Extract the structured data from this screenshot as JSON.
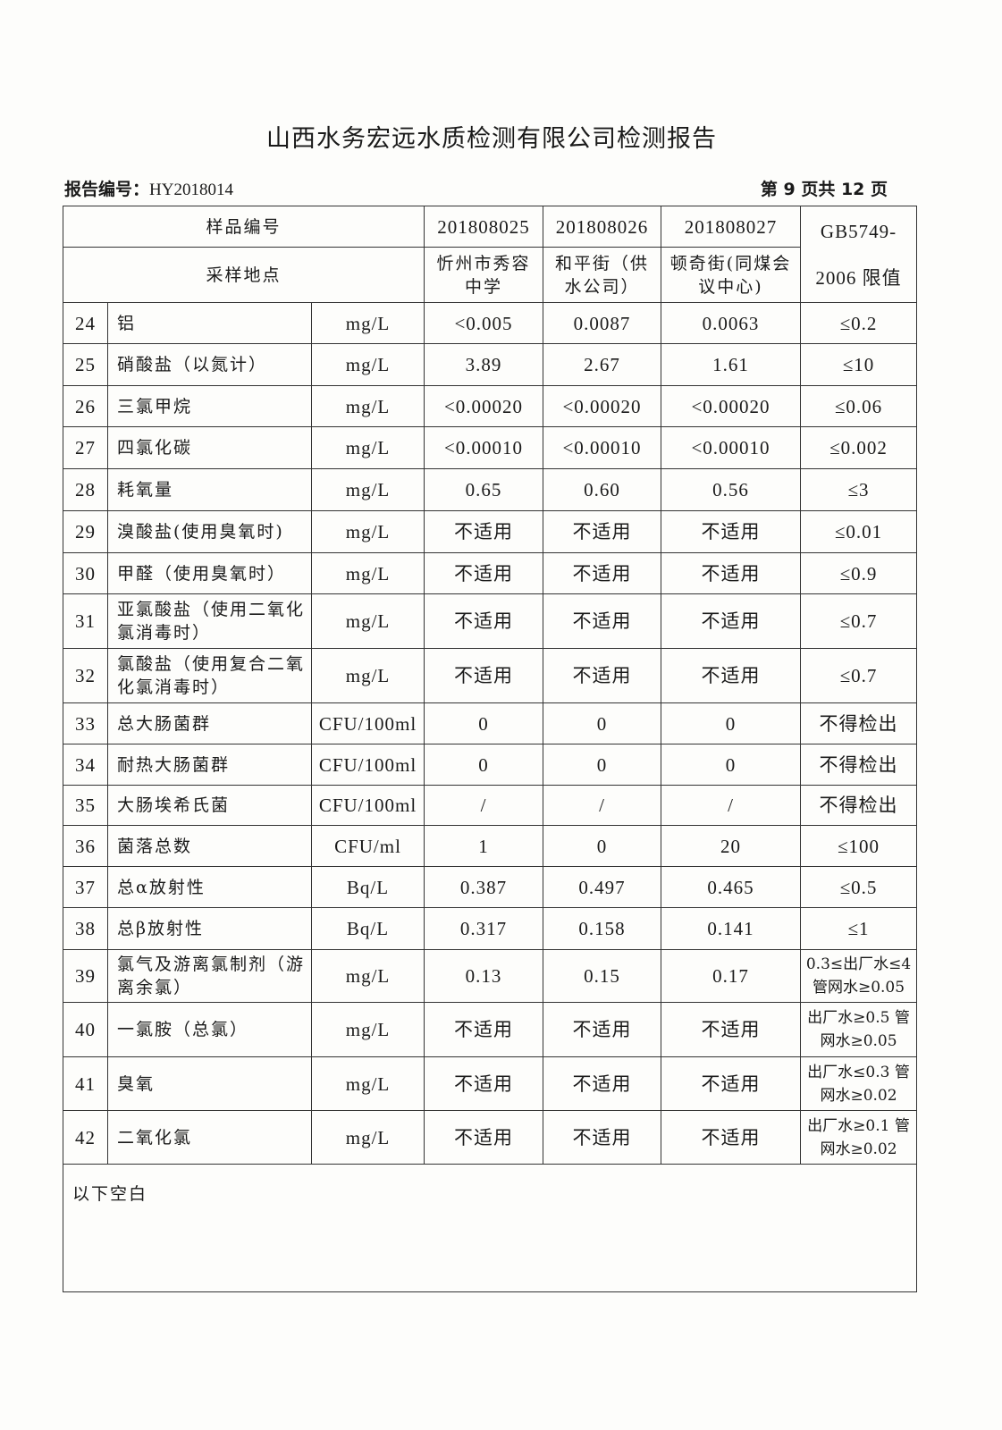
{
  "title": "山西水务宏远水质检测有限公司检测报告",
  "report_no_label": "报告编号：",
  "report_no": "HY2018014",
  "page_info": "第 9 页共 12 页",
  "header": {
    "sample_no_label": "样品编号",
    "location_label": "采样地点",
    "samples": [
      "201808025",
      "201808026",
      "201808027"
    ],
    "locations": [
      "忻州市秀容中学",
      "和平街（供水公司）",
      "顿奇街(同煤会议中心)"
    ],
    "limit_label": "GB5749-2006 限值"
  },
  "rows": [
    {
      "no": "24",
      "name": "铝",
      "unit": "mg/L",
      "v": [
        "<0.005",
        "0.0087",
        "0.0063"
      ],
      "limit": "≤0.2"
    },
    {
      "no": "25",
      "name": "硝酸盐（以氮计）",
      "unit": "mg/L",
      "v": [
        "3.89",
        "2.67",
        "1.61"
      ],
      "limit": "≤10"
    },
    {
      "no": "26",
      "name": "三氯甲烷",
      "unit": "mg/L",
      "v": [
        "<0.00020",
        "<0.00020",
        "<0.00020"
      ],
      "limit": "≤0.06"
    },
    {
      "no": "27",
      "name": "四氯化碳",
      "unit": "mg/L",
      "v": [
        "<0.00010",
        "<0.00010",
        "<0.00010"
      ],
      "limit": "≤0.002"
    },
    {
      "no": "28",
      "name": "耗氧量",
      "unit": "mg/L",
      "v": [
        "0.65",
        "0.60",
        "0.56"
      ],
      "limit": "≤3"
    },
    {
      "no": "29",
      "name": "溴酸盐(使用臭氧时)",
      "unit": "mg/L",
      "v": [
        "不适用",
        "不适用",
        "不适用"
      ],
      "limit": "≤0.01"
    },
    {
      "no": "30",
      "name": "甲醛（使用臭氧时）",
      "unit": "mg/L",
      "v": [
        "不适用",
        "不适用",
        "不适用"
      ],
      "limit": "≤0.9"
    },
    {
      "no": "31",
      "name": "亚氯酸盐（使用二氧化氯消毒时）",
      "unit": "mg/L",
      "v": [
        "不适用",
        "不适用",
        "不适用"
      ],
      "limit": "≤0.7"
    },
    {
      "no": "32",
      "name": "氯酸盐（使用复合二氧化氯消毒时）",
      "unit": "mg/L",
      "v": [
        "不适用",
        "不适用",
        "不适用"
      ],
      "limit": "≤0.7"
    },
    {
      "no": "33",
      "name": "总大肠菌群",
      "unit": "CFU/100ml",
      "v": [
        "0",
        "0",
        "0"
      ],
      "limit": "不得检出"
    },
    {
      "no": "34",
      "name": "耐热大肠菌群",
      "unit": "CFU/100ml",
      "v": [
        "0",
        "0",
        "0"
      ],
      "limit": "不得检出"
    },
    {
      "no": "35",
      "name": "大肠埃希氏菌",
      "unit": "CFU/100ml",
      "v": [
        "/",
        "/",
        "/"
      ],
      "limit": "不得检出"
    },
    {
      "no": "36",
      "name": "菌落总数",
      "unit": "CFU/ml",
      "v": [
        "1",
        "0",
        "20"
      ],
      "limit": "≤100"
    },
    {
      "no": "37",
      "name": "总α放射性",
      "unit": "Bq/L",
      "v": [
        "0.387",
        "0.497",
        "0.465"
      ],
      "limit": "≤0.5"
    },
    {
      "no": "38",
      "name": "总β放射性",
      "unit": "Bq/L",
      "v": [
        "0.317",
        "0.158",
        "0.141"
      ],
      "limit": "≤1"
    },
    {
      "no": "39",
      "name": "氯气及游离氯制剂（游离余氯）",
      "unit": "mg/L",
      "v": [
        "0.13",
        "0.15",
        "0.17"
      ],
      "limit": "0.3≤出厂水≤4 管网水≥0.05"
    },
    {
      "no": "40",
      "name": "一氯胺（总氯）",
      "unit": "mg/L",
      "v": [
        "不适用",
        "不适用",
        "不适用"
      ],
      "limit": "出厂水≥0.5 管网水≥0.05"
    },
    {
      "no": "41",
      "name": "臭氧",
      "unit": "mg/L",
      "v": [
        "不适用",
        "不适用",
        "不适用"
      ],
      "limit": "出厂水≤0.3 管网水≥0.02"
    },
    {
      "no": "42",
      "name": "二氧化氯",
      "unit": "mg/L",
      "v": [
        "不适用",
        "不适用",
        "不适用"
      ],
      "limit": "出厂水≥0.1 管网水≥0.02"
    }
  ],
  "footer_note": "以下空白"
}
